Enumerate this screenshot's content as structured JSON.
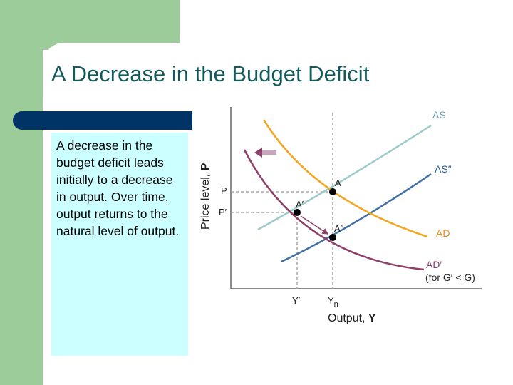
{
  "slide": {
    "title": "A Decrease in the Budget Deficit",
    "body": "A decrease in the budget deficit leads initially to a decrease in output. Over time, output returns to the natural level of output."
  },
  "diagram": {
    "y_axis_label_text": "Price level, ",
    "y_axis_label_var": "P",
    "x_axis_label_text": "Output, ",
    "x_axis_label_var": "Y",
    "price_labels": [
      "P",
      "P′"
    ],
    "output_labels": {
      "y_prime": "Y′",
      "y_n_base": "Y",
      "y_n_sub": "n"
    },
    "curves": {
      "as": "AS",
      "as_shifted": "AS″",
      "ad": "AD",
      "ad_shifted": "AD′",
      "ad_shifted_note": "(for G′ < G)"
    },
    "points": [
      "A",
      "A′",
      "A″"
    ],
    "colors": {
      "as": "#9cc9c9",
      "as_shifted": "#3f6fa6",
      "ad": "#f2a51d",
      "ad_shifted": "#8e3f6a",
      "arrow": "#8e3f6a",
      "guide": "#999999",
      "label_as": "#6f9fb4",
      "label_as_shifted": "#2f5f96",
      "label_ad": "#e8891a",
      "label_ad_shifted": "#8e3f6a"
    }
  }
}
